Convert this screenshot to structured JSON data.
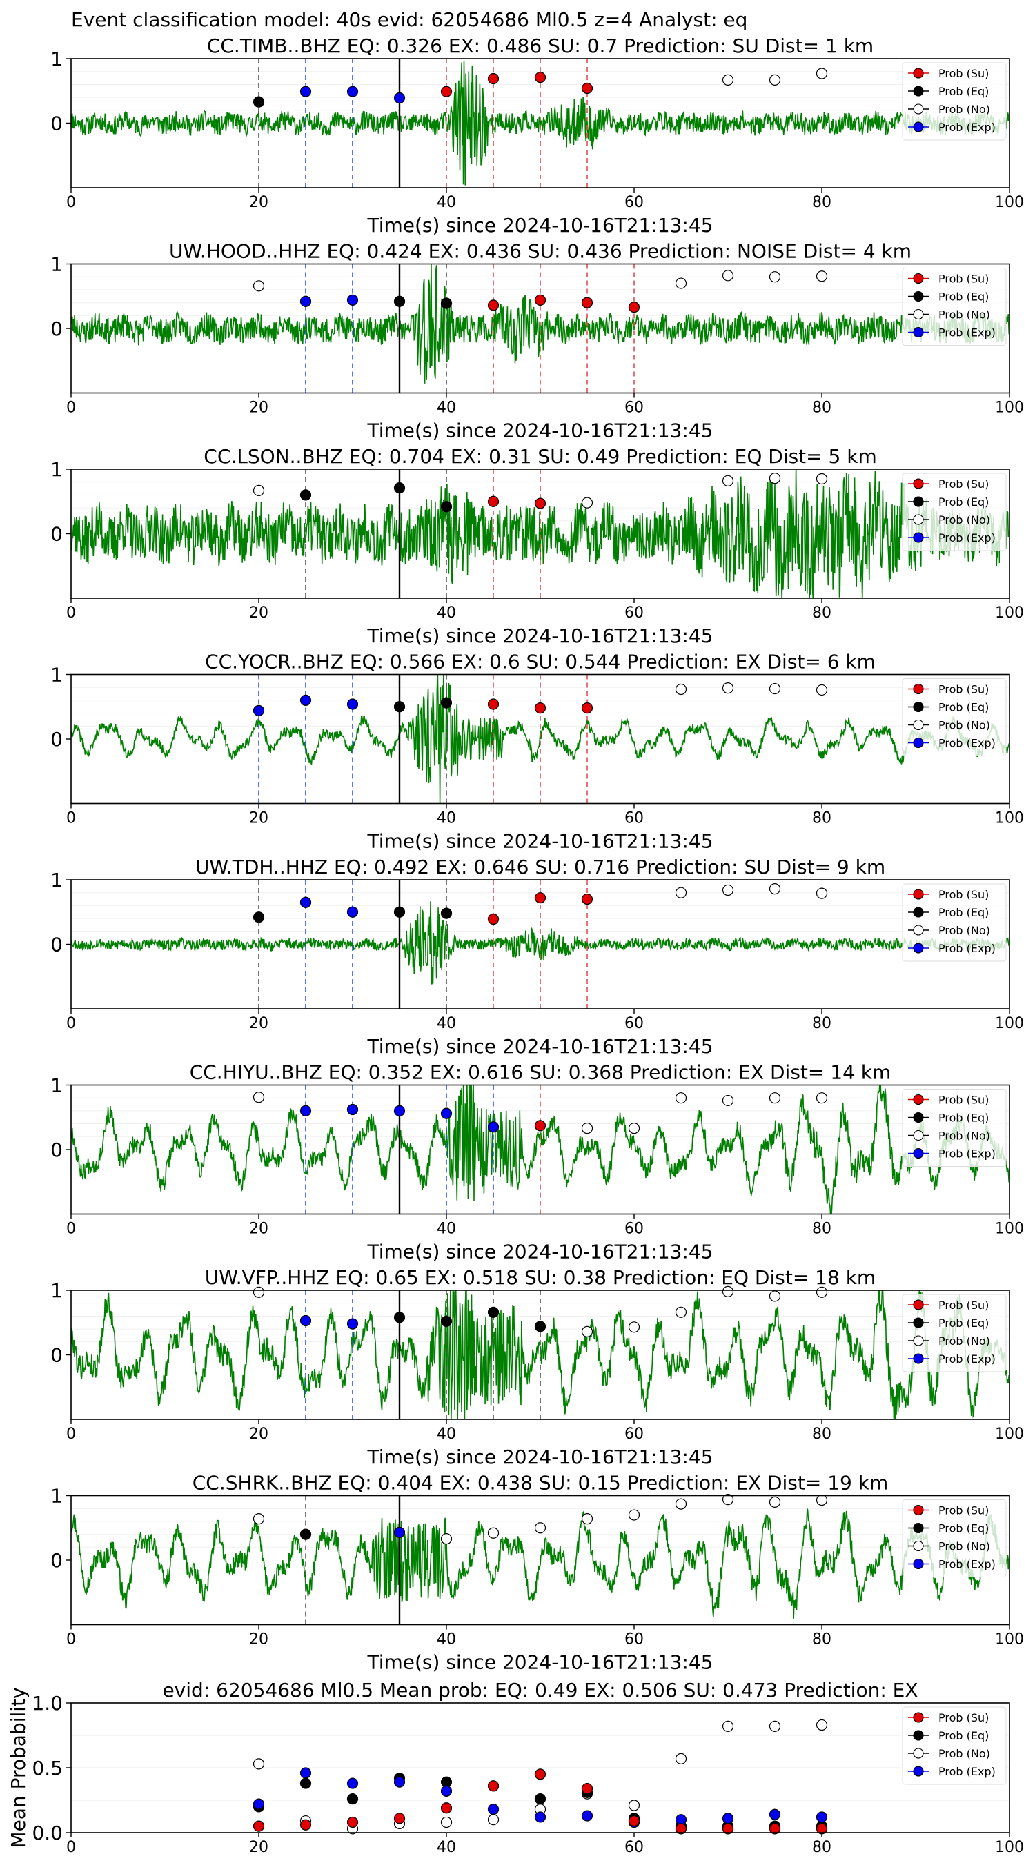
{
  "figure_title": "Event classification model: 40s evid: 62054686 Ml0.5 z=4 Analyst: eq",
  "xlabel": "Time(s) since 2024-10-16T21:13:45",
  "legend": [
    "Prob (Su)",
    "Prob (Eq)",
    "Prob (No)",
    "Prob (Exp)"
  ],
  "colors": {
    "su": "#e00000",
    "eq": "#000000",
    "no": "#ffffff",
    "exp": "#0000ee",
    "waveform": "#008000",
    "eq_line": "#555555",
    "exp_line": "#3050ff",
    "su_line": "#e05050"
  },
  "chart_data": [
    {
      "type": "line+scatter",
      "title": "CC.TIMB..BHZ   EQ: 0.326  EX: 0.486  SU: 0.7   Prediction: SU    Dist= 1 km",
      "xlim": [
        0,
        100
      ],
      "xticks": [
        0,
        20,
        40,
        60,
        80,
        100
      ],
      "yticks": [
        1,
        0
      ],
      "ylim": [
        -1,
        1
      ],
      "waveform": {
        "seed": 11,
        "amp": 0.15,
        "style": "noise",
        "burst": [
          40,
          48,
          0.95
        ],
        "burst2": [
          50,
          58,
          0.3
        ]
      },
      "pick_time": 35,
      "eq": [
        [
          20,
          0.33
        ]
      ],
      "exp": [
        [
          25,
          0.49
        ],
        [
          30,
          0.49
        ],
        [
          35,
          0.39
        ]
      ],
      "su": [
        [
          40,
          0.49
        ],
        [
          45,
          0.69
        ],
        [
          50,
          0.71
        ],
        [
          55,
          0.54
        ]
      ],
      "no": [
        [
          70,
          0.67
        ],
        [
          75,
          0.67
        ],
        [
          80,
          0.77
        ]
      ]
    },
    {
      "type": "line+scatter",
      "title": "UW.HOOD..HHZ   EQ: 0.424  EX: 0.436  SU: 0.436   Prediction: NOISE    Dist= 4 km",
      "xlim": [
        0,
        100
      ],
      "xticks": [
        0,
        20,
        40,
        60,
        80,
        100
      ],
      "yticks": [
        1,
        0
      ],
      "ylim": [
        -1,
        1
      ],
      "waveform": {
        "seed": 23,
        "amp": 0.2,
        "style": "noise",
        "burst": [
          36,
          44,
          0.9
        ],
        "burst2": [
          44,
          52,
          0.35
        ]
      },
      "pick_time": 35,
      "eq": [
        [
          35,
          0.42
        ],
        [
          40,
          0.39
        ]
      ],
      "exp": [
        [
          25,
          0.42
        ],
        [
          30,
          0.44
        ]
      ],
      "su": [
        [
          45,
          0.36
        ],
        [
          50,
          0.44
        ],
        [
          55,
          0.4
        ],
        [
          60,
          0.33
        ]
      ],
      "no": [
        [
          20,
          0.66
        ],
        [
          65,
          0.7
        ],
        [
          70,
          0.82
        ],
        [
          75,
          0.8
        ],
        [
          80,
          0.81
        ]
      ]
    },
    {
      "type": "line+scatter",
      "title": "CC.LSON..BHZ   EQ: 0.704  EX: 0.31  SU: 0.49   Prediction: EQ    Dist= 5 km",
      "xlim": [
        0,
        100
      ],
      "xticks": [
        0,
        20,
        40,
        60,
        80,
        100
      ],
      "yticks": [
        1,
        0
      ],
      "ylim": [
        -1,
        1
      ],
      "waveform": {
        "seed": 37,
        "amp": 0.4,
        "style": "noise",
        "burst": [
          36,
          50,
          0.6
        ],
        "burst2": [
          62,
          95,
          0.75
        ]
      },
      "pick_time": 35,
      "eq": [
        [
          25,
          0.6
        ],
        [
          35,
          0.71
        ],
        [
          40,
          0.42
        ]
      ],
      "exp": [],
      "su": [
        [
          45,
          0.5
        ],
        [
          50,
          0.47
        ]
      ],
      "no": [
        [
          20,
          0.67
        ],
        [
          55,
          0.48
        ],
        [
          70,
          0.82
        ],
        [
          75,
          0.86
        ],
        [
          80,
          0.85
        ]
      ]
    },
    {
      "type": "line+scatter",
      "title": "CC.YOCR..BHZ   EQ: 0.566  EX: 0.6  SU: 0.544   Prediction: EX    Dist= 6 km",
      "xlim": [
        0,
        100
      ],
      "xticks": [
        0,
        20,
        40,
        60,
        80,
        100
      ],
      "yticks": [
        1,
        0
      ],
      "ylim": [
        -1,
        1
      ],
      "waveform": {
        "seed": 41,
        "amp": 0.3,
        "style": "smooth",
        "burst": [
          36,
          46,
          0.85
        ],
        "burst2": [
          46,
          52,
          0.3
        ]
      },
      "pick_time": 35,
      "eq": [
        [
          35,
          0.5
        ],
        [
          40,
          0.56
        ]
      ],
      "exp": [
        [
          20,
          0.44
        ],
        [
          25,
          0.6
        ],
        [
          30,
          0.54
        ]
      ],
      "su": [
        [
          45,
          0.54
        ],
        [
          50,
          0.48
        ],
        [
          55,
          0.48
        ]
      ],
      "no": [
        [
          65,
          0.77
        ],
        [
          70,
          0.79
        ],
        [
          75,
          0.78
        ],
        [
          80,
          0.76
        ]
      ]
    },
    {
      "type": "line+scatter",
      "title": "UW.TDH..HHZ   EQ: 0.492  EX: 0.646  SU: 0.716   Prediction: SU    Dist= 9 km",
      "xlim": [
        0,
        100
      ],
      "xticks": [
        0,
        20,
        40,
        60,
        80,
        100
      ],
      "yticks": [
        1,
        0
      ],
      "ylim": [
        -1,
        1
      ],
      "waveform": {
        "seed": 53,
        "amp": 0.08,
        "style": "noise",
        "burst": [
          35,
          45,
          0.6
        ],
        "burst2": [
          45,
          55,
          0.2
        ]
      },
      "pick_time": 35,
      "eq": [
        [
          20,
          0.42
        ],
        [
          35,
          0.5
        ],
        [
          40,
          0.48
        ]
      ],
      "exp": [
        [
          25,
          0.65
        ],
        [
          30,
          0.5
        ]
      ],
      "su": [
        [
          45,
          0.39
        ],
        [
          50,
          0.72
        ],
        [
          55,
          0.7
        ]
      ],
      "no": [
        [
          65,
          0.8
        ],
        [
          70,
          0.84
        ],
        [
          75,
          0.86
        ],
        [
          80,
          0.79
        ]
      ]
    },
    {
      "type": "line+scatter",
      "title": "CC.HIYU..BHZ   EQ: 0.352  EX: 0.616  SU: 0.368   Prediction: EX    Dist= 14 km",
      "xlim": [
        0,
        100
      ],
      "xticks": [
        0,
        20,
        40,
        60,
        80,
        100
      ],
      "yticks": [
        1,
        0
      ],
      "ylim": [
        -1,
        1
      ],
      "waveform": {
        "seed": 67,
        "amp": 0.55,
        "style": "smooth",
        "burst": [
          40,
          48,
          0.9
        ],
        "burst2": [
          70,
          95,
          0.7
        ]
      },
      "pick_time": 35,
      "eq": [],
      "exp": [
        [
          25,
          0.6
        ],
        [
          30,
          0.62
        ],
        [
          35,
          0.6
        ],
        [
          40,
          0.56
        ],
        [
          45,
          0.35
        ]
      ],
      "su": [
        [
          50,
          0.37
        ]
      ],
      "no": [
        [
          20,
          0.81
        ],
        [
          55,
          0.33
        ],
        [
          60,
          0.33
        ],
        [
          65,
          0.8
        ],
        [
          70,
          0.76
        ],
        [
          75,
          0.8
        ],
        [
          80,
          0.8
        ]
      ]
    },
    {
      "type": "line+scatter",
      "title": "UW.VFP..HHZ   EQ: 0.65  EX: 0.518  SU: 0.38   Prediction: EQ    Dist= 18 km",
      "xlim": [
        0,
        100
      ],
      "xticks": [
        0,
        20,
        40,
        60,
        80,
        100
      ],
      "yticks": [
        1,
        0
      ],
      "ylim": [
        -1,
        1
      ],
      "waveform": {
        "seed": 79,
        "amp": 0.75,
        "style": "smooth",
        "burst": [
          38,
          48,
          0.9
        ],
        "burst2": [
          80,
          100,
          0.8
        ]
      },
      "pick_time": 35,
      "eq": [
        [
          35,
          0.58
        ],
        [
          40,
          0.52
        ],
        [
          45,
          0.66
        ],
        [
          50,
          0.44
        ]
      ],
      "exp": [
        [
          25,
          0.53
        ],
        [
          30,
          0.48
        ]
      ],
      "su": [],
      "no": [
        [
          20,
          0.97
        ],
        [
          55,
          0.36
        ],
        [
          60,
          0.43
        ],
        [
          65,
          0.66
        ],
        [
          70,
          0.98
        ],
        [
          75,
          0.91
        ],
        [
          80,
          0.97
        ]
      ]
    },
    {
      "type": "line+scatter",
      "title": "CC.SHRK..BHZ   EQ: 0.404  EX: 0.438  SU: 0.15   Prediction: EX    Dist= 19 km",
      "xlim": [
        0,
        100
      ],
      "xticks": [
        0,
        20,
        40,
        60,
        80,
        100
      ],
      "yticks": [
        1,
        0
      ],
      "ylim": [
        -1,
        1
      ],
      "waveform": {
        "seed": 97,
        "amp": 0.6,
        "style": "smooth",
        "burst": [
          32,
          40,
          0.3
        ],
        "burst2": [
          60,
          90,
          0.55
        ]
      },
      "pick_time": 35,
      "eq": [
        [
          25,
          0.4
        ]
      ],
      "exp": [
        [
          35,
          0.43
        ]
      ],
      "su": [],
      "no": [
        [
          20,
          0.64
        ],
        [
          40,
          0.33
        ],
        [
          45,
          0.42
        ],
        [
          50,
          0.5
        ],
        [
          55,
          0.64
        ],
        [
          60,
          0.7
        ],
        [
          65,
          0.87
        ],
        [
          70,
          0.94
        ],
        [
          75,
          0.9
        ],
        [
          80,
          0.93
        ]
      ]
    },
    {
      "type": "scatter",
      "title": "evid: 62054686  Ml0.5   Mean prob:   EQ: 0.49  EX: 0.506  SU: 0.473   Prediction: EX",
      "ylabel": "Mean Probability",
      "xlim": [
        0,
        100
      ],
      "ylim": [
        0,
        1
      ],
      "xticks": [
        0,
        20,
        40,
        60,
        80,
        100
      ],
      "yticks": [
        1.0,
        0.5,
        0.0
      ],
      "xticklabels": [
        "0",
        "20",
        "40",
        "60",
        "80",
        "100"
      ],
      "yticklabels": [
        "1.0",
        "0.5",
        "0.0"
      ],
      "su": [
        [
          20,
          0.05
        ],
        [
          25,
          0.06
        ],
        [
          30,
          0.08
        ],
        [
          35,
          0.11
        ],
        [
          40,
          0.19
        ],
        [
          45,
          0.36
        ],
        [
          50,
          0.45
        ],
        [
          55,
          0.34
        ],
        [
          60,
          0.09
        ],
        [
          65,
          0.03
        ],
        [
          70,
          0.03
        ],
        [
          75,
          0.03
        ],
        [
          80,
          0.03
        ]
      ],
      "eq": [
        [
          20,
          0.2
        ],
        [
          25,
          0.38
        ],
        [
          30,
          0.26
        ],
        [
          35,
          0.42
        ],
        [
          40,
          0.39
        ],
        [
          45,
          0.36
        ],
        [
          50,
          0.26
        ],
        [
          55,
          0.31
        ],
        [
          60,
          0.11
        ],
        [
          65,
          0.05
        ],
        [
          70,
          0.05
        ],
        [
          75,
          0.05
        ],
        [
          80,
          0.05
        ]
      ],
      "no": [
        [
          20,
          0.53
        ],
        [
          25,
          0.09
        ],
        [
          30,
          0.03
        ],
        [
          35,
          0.07
        ],
        [
          40,
          0.08
        ],
        [
          45,
          0.1
        ],
        [
          50,
          0.18
        ],
        [
          55,
          0.3
        ],
        [
          60,
          0.21
        ],
        [
          65,
          0.57
        ],
        [
          70,
          0.82
        ],
        [
          75,
          0.82
        ],
        [
          80,
          0.83
        ]
      ],
      "exp": [
        [
          20,
          0.22
        ],
        [
          25,
          0.46
        ],
        [
          30,
          0.38
        ],
        [
          35,
          0.39
        ],
        [
          40,
          0.32
        ],
        [
          45,
          0.18
        ],
        [
          50,
          0.12
        ],
        [
          55,
          0.13
        ],
        [
          60,
          0.08
        ],
        [
          65,
          0.1
        ],
        [
          70,
          0.11
        ],
        [
          75,
          0.14
        ],
        [
          80,
          0.12
        ]
      ]
    }
  ]
}
